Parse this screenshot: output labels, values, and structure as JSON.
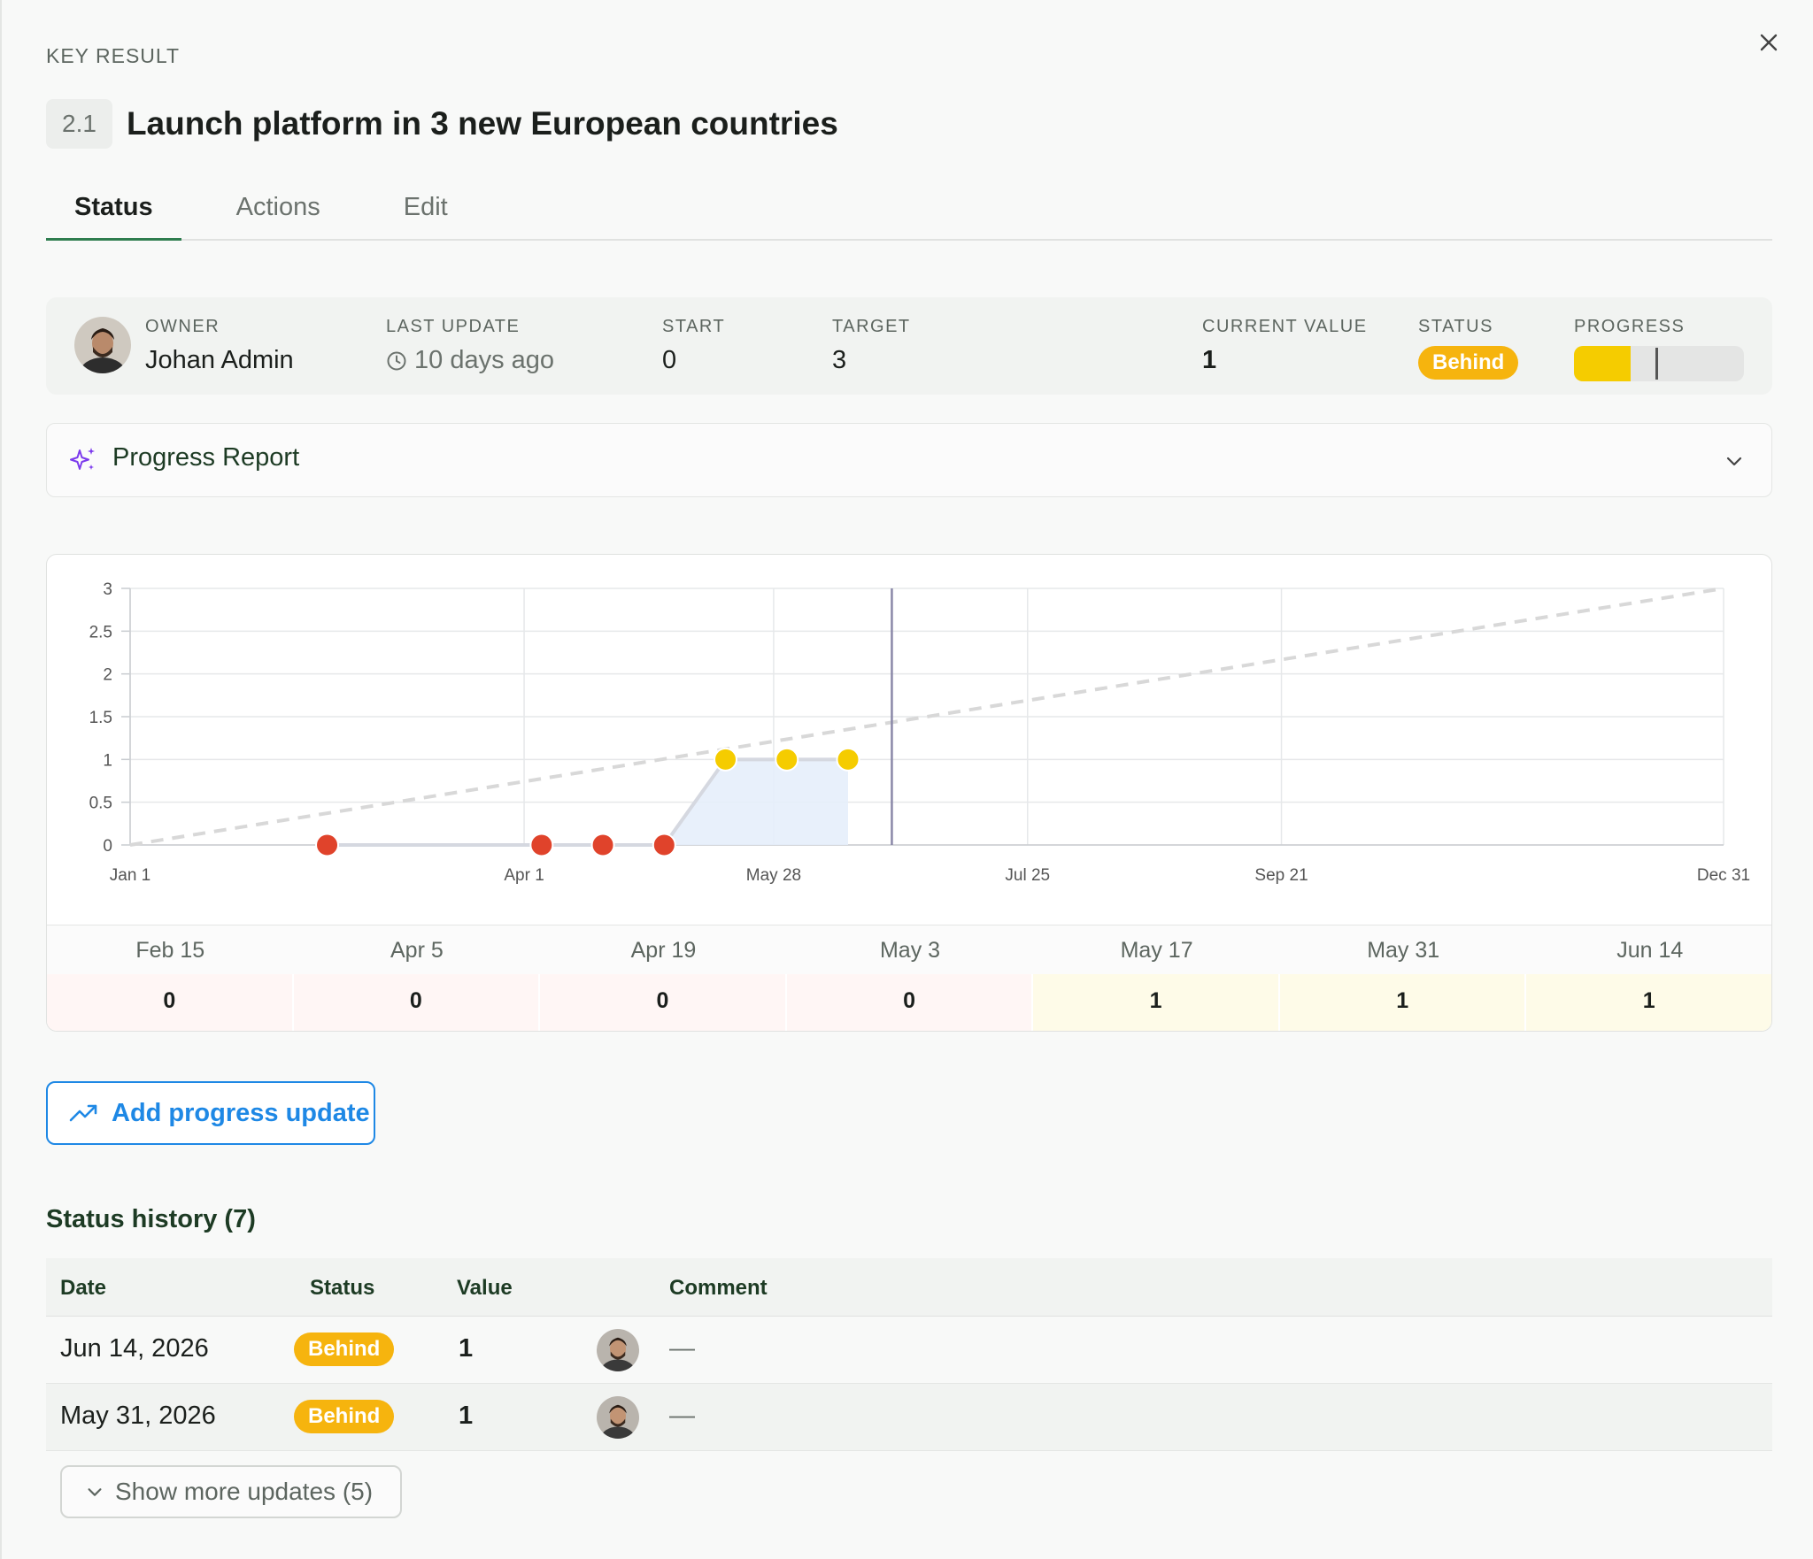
{
  "panel": {
    "eyebrow": "KEY RESULT",
    "kr_number": "2.1",
    "kr_title": "Launch platform in 3 new European countries"
  },
  "tabs": [
    {
      "label": "Status",
      "active": true
    },
    {
      "label": "Actions",
      "active": false
    },
    {
      "label": "Edit",
      "active": false
    }
  ],
  "meta": {
    "owner_label": "OWNER",
    "owner_name": "Johan Admin",
    "last_update_label": "LAST UPDATE",
    "last_update_value": "10 days ago",
    "start_label": "START",
    "start_value": "0",
    "target_label": "TARGET",
    "target_value": "3",
    "current_label": "CURRENT VALUE",
    "current_value": "1",
    "status_label": "STATUS",
    "status_value": "Behind",
    "progress_label": "PROGRESS",
    "progress_fraction": 0.333,
    "expected_fraction": 0.48
  },
  "report": {
    "label": "Progress Report"
  },
  "chart_data": {
    "type": "line",
    "title": "",
    "xlabel": "",
    "ylabel": "",
    "ylim": [
      0,
      3
    ],
    "yticks": [
      0,
      0.5,
      1,
      1.5,
      2,
      2.5,
      3
    ],
    "ytick_labels": [
      "0",
      "0.5",
      "1",
      "1.5",
      "2",
      "2.5",
      "3"
    ],
    "xlim": [
      "2026-01-01",
      "2026-12-31"
    ],
    "xticks": [
      "2026-01-01",
      "2026-04-01",
      "2026-05-28",
      "2026-07-25",
      "2026-09-21",
      "2026-12-31"
    ],
    "xtick_labels": [
      "Jan 1",
      "Apr 1",
      "May 28",
      "Jul 25",
      "Sep 21",
      "Dec 31"
    ],
    "today": "2026-06-24",
    "grid": true,
    "legend": "none",
    "target_line": {
      "from": [
        "2026-01-01",
        0
      ],
      "to": [
        "2026-12-31",
        3
      ]
    },
    "points": [
      {
        "x": "2026-02-15",
        "y": 0,
        "status": "off-track"
      },
      {
        "x": "2026-04-05",
        "y": 0,
        "status": "off-track"
      },
      {
        "x": "2026-04-19",
        "y": 0,
        "status": "off-track"
      },
      {
        "x": "2026-05-03",
        "y": 0,
        "status": "off-track"
      },
      {
        "x": "2026-05-17",
        "y": 1,
        "status": "behind"
      },
      {
        "x": "2026-05-31",
        "y": 1,
        "status": "behind"
      },
      {
        "x": "2026-06-14",
        "y": 1,
        "status": "behind"
      }
    ],
    "colors": {
      "off-track": "#e0432b",
      "behind": "#f5cc00",
      "area": "#e6eefb",
      "line": "#d5d8e0",
      "target": "#d8d8d8",
      "today": "#8a88a8"
    }
  },
  "history_strip": [
    {
      "date": "Feb 15",
      "value": "0",
      "status": "off"
    },
    {
      "date": "Apr 5",
      "value": "0",
      "status": "off"
    },
    {
      "date": "Apr 19",
      "value": "0",
      "status": "off"
    },
    {
      "date": "May 3",
      "value": "0",
      "status": "off"
    },
    {
      "date": "May 17",
      "value": "1",
      "status": "behind"
    },
    {
      "date": "May 31",
      "value": "1",
      "status": "behind"
    },
    {
      "date": "Jun 14",
      "value": "1",
      "status": "behind"
    }
  ],
  "actions": {
    "add_update_label": "Add progress update"
  },
  "status_history": {
    "title": "Status history (7)",
    "columns": [
      "Date",
      "Status",
      "Value",
      "Comment"
    ],
    "rows": [
      {
        "date": "Jun 14, 2026",
        "status": "Behind",
        "value": "1",
        "comment": "—"
      },
      {
        "date": "May 31, 2026",
        "status": "Behind",
        "value": "1",
        "comment": "—"
      }
    ],
    "show_more_label": "Show more updates (5)"
  }
}
